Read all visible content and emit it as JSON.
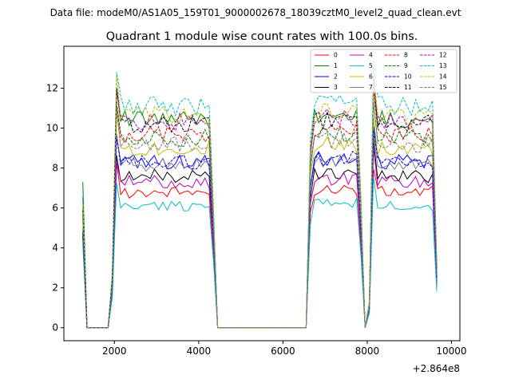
{
  "suptitle": "Data file: modeM0/AS1A05_159T01_9000002678_18039cztM0_level2_quad_clean.evt",
  "chart_data": {
    "type": "line",
    "title": "Quadrant 1 module wise count rates with 100.0s bins.",
    "xlabel": "",
    "ylabel": "",
    "x_offset_label": "+2.864e8",
    "xlim": [
      800,
      10200
    ],
    "ylim": [
      -0.65,
      14.1
    ],
    "xticks": [
      2000,
      4000,
      6000,
      8000,
      10000
    ],
    "xtick_labels": [
      "2000",
      "4000",
      "6000",
      "8000",
      "10000"
    ],
    "yticks": [
      0,
      2,
      4,
      6,
      8,
      10,
      12
    ],
    "ytick_labels": [
      "0",
      "2",
      "4",
      "6",
      "8",
      "10",
      "12"
    ],
    "grid": false,
    "legend_position": "top-right",
    "x": [
      1250,
      1350,
      1450,
      1550,
      1650,
      1750,
      1850,
      1950,
      2050,
      2150,
      2250,
      2350,
      2450,
      2550,
      2650,
      2750,
      2850,
      2950,
      3050,
      3150,
      3250,
      3350,
      3450,
      3550,
      3650,
      3750,
      3850,
      3950,
      4050,
      4150,
      4250,
      4350,
      4450,
      4550,
      4650,
      4750,
      4850,
      4950,
      5050,
      5150,
      5250,
      5350,
      5450,
      5550,
      5650,
      5750,
      5850,
      5950,
      6050,
      6150,
      6250,
      6350,
      6450,
      6550,
      6650,
      6750,
      6850,
      6950,
      7050,
      7150,
      7250,
      7350,
      7450,
      7550,
      7650,
      7750,
      7850,
      7950,
      8050,
      8150,
      8250,
      8350,
      8450,
      8550,
      8650,
      8750,
      8850,
      8950,
      9050,
      9150,
      9250,
      9350,
      9450,
      9550,
      9650
    ],
    "series": [
      {
        "name": "0",
        "color": "#ff0000",
        "dash": "solid",
        "level": 6.8,
        "start": 6.5,
        "seed": 1
      },
      {
        "name": "1",
        "color": "#008000",
        "dash": "solid",
        "level": 10.4,
        "start": 7.3,
        "seed": 2
      },
      {
        "name": "2",
        "color": "#0000ff",
        "dash": "solid",
        "level": 8.3,
        "start": 4.6,
        "seed": 3
      },
      {
        "name": "3",
        "color": "#000000",
        "dash": "solid",
        "level": 7.6,
        "start": 4.7,
        "seed": 4
      },
      {
        "name": "4",
        "color": "#bf00bf",
        "dash": "solid",
        "level": 7.3,
        "start": 4.5,
        "seed": 5
      },
      {
        "name": "5",
        "color": "#00bfbf",
        "dash": "solid",
        "level": 6.1,
        "start": 4.2,
        "seed": 6
      },
      {
        "name": "6",
        "color": "#bfbf00",
        "dash": "solid",
        "level": 9.0,
        "start": 5.5,
        "seed": 7
      },
      {
        "name": "7",
        "color": "#808080",
        "dash": "solid",
        "level": 8.2,
        "start": 5.0,
        "seed": 8
      },
      {
        "name": "8",
        "color": "#ff0000",
        "dash": "dashed",
        "level": 9.7,
        "start": 5.8,
        "seed": 9
      },
      {
        "name": "9",
        "color": "#008000",
        "dash": "dashed",
        "level": 9.5,
        "start": 5.6,
        "seed": 10
      },
      {
        "name": "10",
        "color": "#0000ff",
        "dash": "dashed",
        "level": 8.3,
        "start": 4.8,
        "seed": 11
      },
      {
        "name": "11",
        "color": "#000000",
        "dash": "dashed",
        "level": 10.2,
        "start": 5.9,
        "seed": 12
      },
      {
        "name": "12",
        "color": "#bf00bf",
        "dash": "dashed",
        "level": 10.3,
        "start": 6.0,
        "seed": 13
      },
      {
        "name": "13",
        "color": "#00bfbf",
        "dash": "dashed",
        "level": 11.1,
        "start": 6.6,
        "seed": 14
      },
      {
        "name": "14",
        "color": "#bfbf00",
        "dash": "dashed",
        "level": 10.6,
        "start": 6.2,
        "seed": 15
      },
      {
        "name": "15",
        "color": "#808080",
        "dash": "dashed",
        "level": 9.2,
        "start": 5.4,
        "seed": 16
      }
    ]
  }
}
